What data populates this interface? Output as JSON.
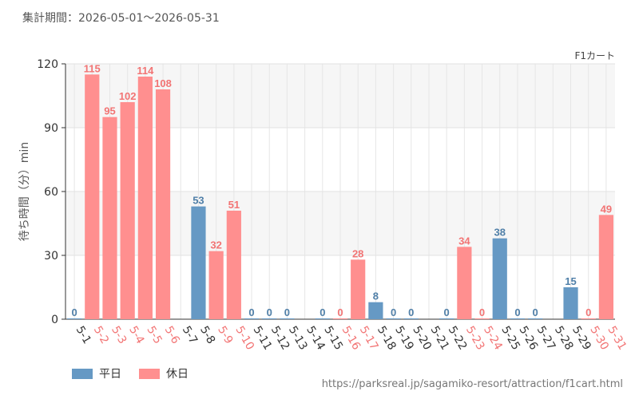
{
  "header": {
    "period": "集計期間：2026-05-01～2026-05-31"
  },
  "source_url": "https://parksreal.jp/sagamiko-resort/attraction/f1cart.html",
  "colors": {
    "weekday": "#6699c4",
    "holiday": "#ff8f8f",
    "weekday_text": "#4f7fa8",
    "holiday_text": "#f27474"
  },
  "chart_data": {
    "type": "bar",
    "series_name": "F1カート",
    "ylabel": "待ち時間（分）min",
    "ylim": [
      0,
      120
    ],
    "yticks": [
      0,
      30,
      60,
      90,
      120
    ],
    "grid": true,
    "legend_position": "bottom-left",
    "legend": [
      {
        "key": "weekday",
        "label": "平日"
      },
      {
        "key": "holiday",
        "label": "休日"
      }
    ],
    "categories": [
      "5-1",
      "5-2",
      "5-3",
      "5-4",
      "5-5",
      "5-6",
      "5-7",
      "5-8",
      "5-9",
      "5-10",
      "5-11",
      "5-12",
      "5-13",
      "5-14",
      "5-15",
      "5-16",
      "5-17",
      "5-18",
      "5-19",
      "5-20",
      "5-21",
      "5-22",
      "5-23",
      "5-24",
      "5-25",
      "5-26",
      "5-27",
      "5-28",
      "5-29",
      "5-30",
      "5-31"
    ],
    "values": [
      0,
      115,
      95,
      102,
      114,
      108,
      null,
      53,
      32,
      51,
      0,
      0,
      0,
      null,
      0,
      0,
      28,
      8,
      0,
      0,
      null,
      0,
      34,
      0,
      38,
      0,
      0,
      null,
      15,
      0,
      49
    ],
    "day_type": [
      "weekday",
      "holiday",
      "holiday",
      "holiday",
      "holiday",
      "holiday",
      "weekday",
      "weekday",
      "holiday",
      "holiday",
      "weekday",
      "weekday",
      "weekday",
      "weekday",
      "weekday",
      "holiday",
      "holiday",
      "weekday",
      "weekday",
      "weekday",
      "weekday",
      "weekday",
      "holiday",
      "holiday",
      "weekday",
      "weekday",
      "weekday",
      "weekday",
      "weekday",
      "holiday",
      "holiday"
    ]
  }
}
